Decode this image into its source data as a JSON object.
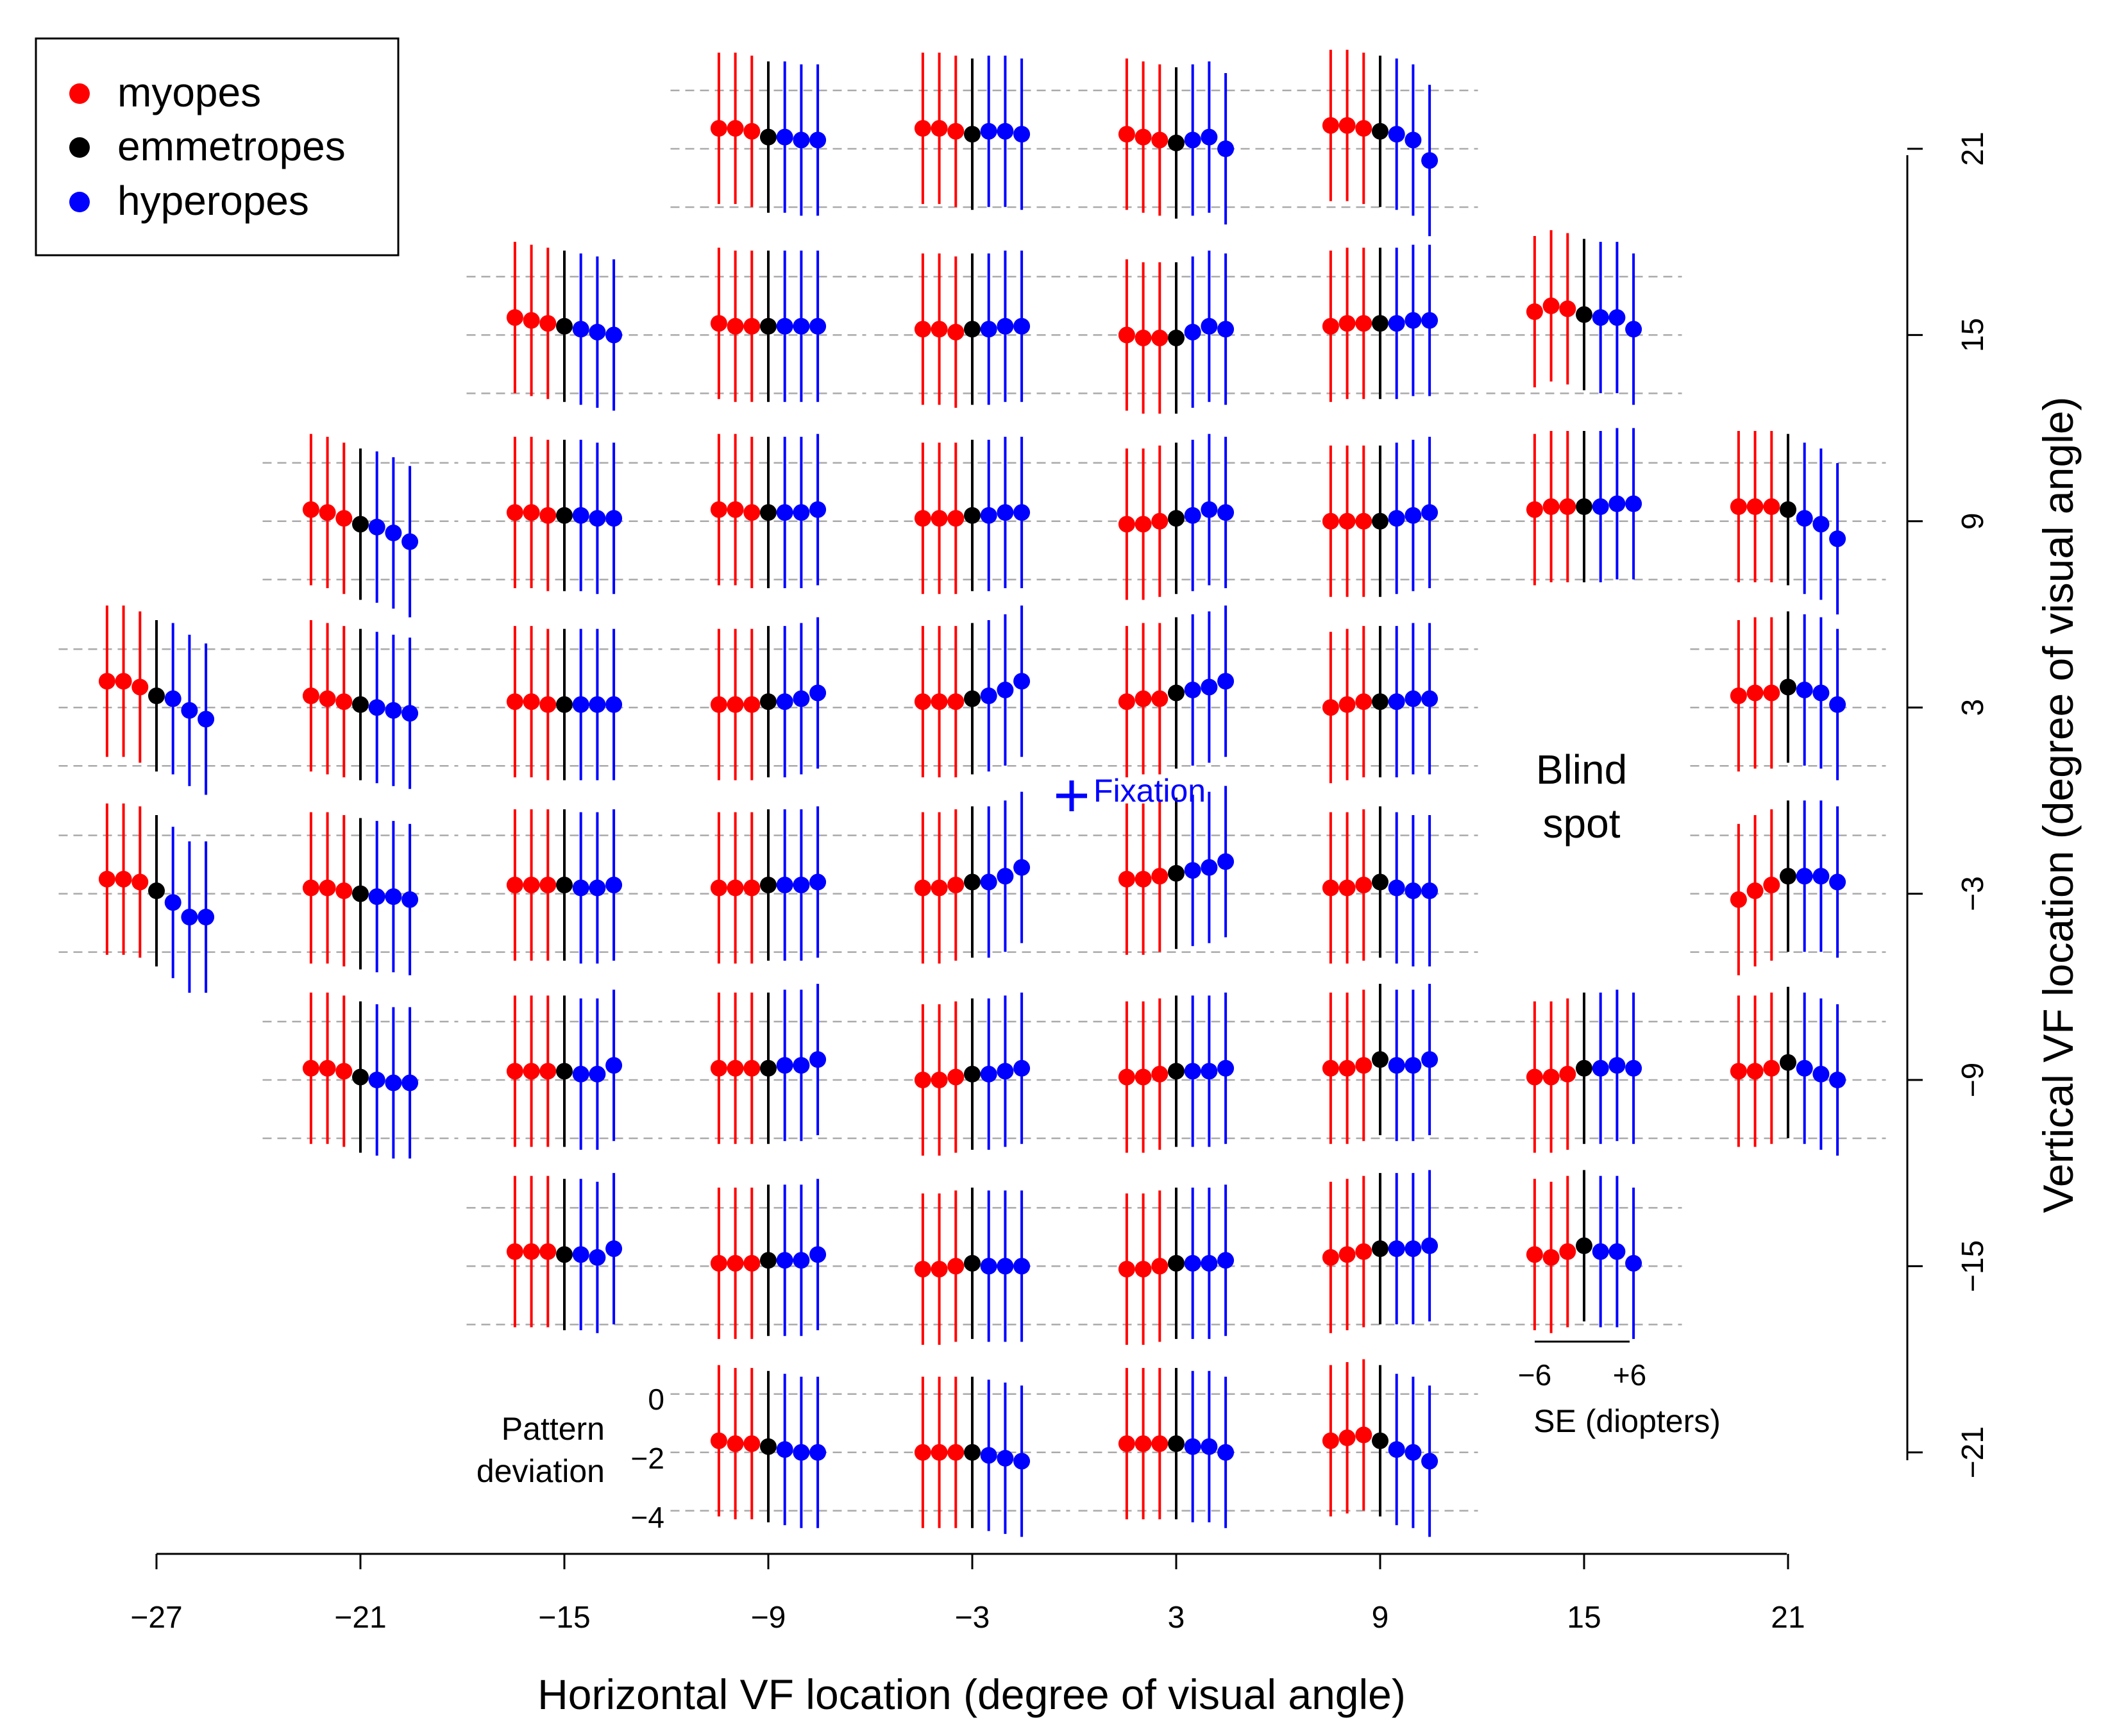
{
  "colors": {
    "myopes": "#ff0000",
    "emmetropes": "#000000",
    "hyperopes": "#0000ff",
    "reference": "#aaaaaa"
  },
  "legend": [
    {
      "label": "myopes",
      "color": "#ff0000"
    },
    {
      "label": "emmetropes",
      "color": "#000000"
    },
    {
      "label": "hyperopes",
      "color": "#0000ff"
    }
  ],
  "annotations": {
    "fixation": "Fixation",
    "blind_spot_line1": "Blind",
    "blind_spot_line2": "spot",
    "pattern_label_line1": "Pattern",
    "pattern_label_line2": "deviation",
    "se_axis_label": "SE (diopters)",
    "se_min_tick": "−6",
    "se_max_tick": "+6"
  },
  "chart_data": {
    "type": "scatter",
    "title": "",
    "xlabel": "Horizontal VF location (degree of visual angle)",
    "ylabel": "Vertical VF location (degree of visual angle)",
    "x_ticks": [
      "−27",
      "−21",
      "−15",
      "−9",
      "−3",
      "3",
      "9",
      "15",
      "21"
    ],
    "y_ticks": [
      "21",
      "15",
      "9",
      "3",
      "−3",
      "−9",
      "−15",
      "−21"
    ],
    "xlim": [
      -27,
      21
    ],
    "ylim": [
      -21,
      21
    ],
    "inset_scale": {
      "pattern_deviation_ticks": [
        "0",
        "−2",
        "−4"
      ],
      "pattern_deviation_reference_lines": [
        0,
        -2,
        -4
      ],
      "se_range_diopters": [
        -6,
        6
      ]
    },
    "series_order": [
      "myopes",
      "myopes",
      "myopes",
      "emmetropes",
      "hyperopes",
      "hyperopes",
      "hyperopes"
    ],
    "locations": [
      {
        "x": -27,
        "y": 3,
        "values": [
          -1.1,
          -1.1,
          -1.3,
          -1.6,
          -1.7,
          -2.1,
          -2.4
        ]
      },
      {
        "x": -27,
        "y": -3,
        "values": [
          -1.5,
          -1.5,
          -1.6,
          -1.9,
          -2.3,
          -2.8,
          -2.8
        ]
      },
      {
        "x": -21,
        "y": 9,
        "values": [
          -1.6,
          -1.7,
          -1.9,
          -2.1,
          -2.2,
          -2.4,
          -2.7
        ]
      },
      {
        "x": -21,
        "y": 3,
        "values": [
          -1.6,
          -1.7,
          -1.8,
          -1.9,
          -2.0,
          -2.1,
          -2.2
        ]
      },
      {
        "x": -21,
        "y": -3,
        "values": [
          -1.8,
          -1.8,
          -1.9,
          -2.0,
          -2.1,
          -2.1,
          -2.2
        ]
      },
      {
        "x": -21,
        "y": -9,
        "values": [
          -1.6,
          -1.6,
          -1.7,
          -1.9,
          -2.0,
          -2.1,
          -2.1
        ]
      },
      {
        "x": -15,
        "y": 15,
        "values": [
          -1.4,
          -1.5,
          -1.6,
          -1.7,
          -1.8,
          -1.9,
          -2.0
        ]
      },
      {
        "x": -15,
        "y": 9,
        "values": [
          -1.7,
          -1.7,
          -1.8,
          -1.8,
          -1.8,
          -1.9,
          -1.9
        ]
      },
      {
        "x": -15,
        "y": 3,
        "values": [
          -1.8,
          -1.8,
          -1.9,
          -1.9,
          -1.9,
          -1.9,
          -1.9
        ]
      },
      {
        "x": -15,
        "y": -3,
        "values": [
          -1.7,
          -1.7,
          -1.7,
          -1.7,
          -1.8,
          -1.8,
          -1.7
        ]
      },
      {
        "x": -15,
        "y": -9,
        "values": [
          -1.7,
          -1.7,
          -1.7,
          -1.7,
          -1.8,
          -1.8,
          -1.5
        ]
      },
      {
        "x": -15,
        "y": -15,
        "values": [
          -1.5,
          -1.5,
          -1.5,
          -1.6,
          -1.6,
          -1.7,
          -1.4
        ]
      },
      {
        "x": -9,
        "y": 21,
        "values": [
          -1.3,
          -1.3,
          -1.4,
          -1.6,
          -1.6,
          -1.7,
          -1.7
        ]
      },
      {
        "x": -9,
        "y": 15,
        "values": [
          -1.6,
          -1.7,
          -1.7,
          -1.7,
          -1.7,
          -1.7,
          -1.7
        ]
      },
      {
        "x": -9,
        "y": 9,
        "values": [
          -1.6,
          -1.6,
          -1.7,
          -1.7,
          -1.7,
          -1.7,
          -1.6
        ]
      },
      {
        "x": -9,
        "y": 3,
        "values": [
          -1.9,
          -1.9,
          -1.9,
          -1.8,
          -1.8,
          -1.7,
          -1.5
        ]
      },
      {
        "x": -9,
        "y": -3,
        "values": [
          -1.8,
          -1.8,
          -1.8,
          -1.7,
          -1.7,
          -1.7,
          -1.6
        ]
      },
      {
        "x": -9,
        "y": -9,
        "values": [
          -1.6,
          -1.6,
          -1.6,
          -1.6,
          -1.5,
          -1.5,
          -1.3
        ]
      },
      {
        "x": -9,
        "y": -15,
        "values": [
          -1.9,
          -1.9,
          -1.9,
          -1.8,
          -1.8,
          -1.8,
          -1.6
        ]
      },
      {
        "x": -9,
        "y": -21,
        "values": [
          -1.6,
          -1.7,
          -1.7,
          -1.8,
          -1.9,
          -2.0,
          -2.0
        ]
      },
      {
        "x": -3,
        "y": 21,
        "values": [
          -1.3,
          -1.3,
          -1.4,
          -1.5,
          -1.4,
          -1.4,
          -1.5
        ]
      },
      {
        "x": -3,
        "y": 15,
        "values": [
          -1.8,
          -1.8,
          -1.9,
          -1.8,
          -1.8,
          -1.7,
          -1.7
        ]
      },
      {
        "x": -3,
        "y": 9,
        "values": [
          -1.9,
          -1.9,
          -1.9,
          -1.8,
          -1.8,
          -1.7,
          -1.7
        ]
      },
      {
        "x": -3,
        "y": 3,
        "values": [
          -1.8,
          -1.8,
          -1.8,
          -1.7,
          -1.6,
          -1.4,
          -1.1
        ]
      },
      {
        "x": -3,
        "y": -3,
        "values": [
          -1.8,
          -1.8,
          -1.7,
          -1.6,
          -1.6,
          -1.4,
          -1.1
        ]
      },
      {
        "x": -3,
        "y": -9,
        "values": [
          -2.0,
          -2.0,
          -1.9,
          -1.8,
          -1.8,
          -1.7,
          -1.6
        ]
      },
      {
        "x": -3,
        "y": -15,
        "values": [
          -2.1,
          -2.1,
          -2.0,
          -1.9,
          -2.0,
          -2.0,
          -2.0
        ]
      },
      {
        "x": -3,
        "y": -21,
        "values": [
          -2.0,
          -2.0,
          -2.0,
          -2.0,
          -2.1,
          -2.2,
          -2.3
        ]
      },
      {
        "x": 3,
        "y": 21,
        "values": [
          -1.5,
          -1.6,
          -1.7,
          -1.8,
          -1.7,
          -1.6,
          -2.0
        ]
      },
      {
        "x": 3,
        "y": 15,
        "values": [
          -2.0,
          -2.1,
          -2.1,
          -2.1,
          -1.9,
          -1.7,
          -1.8
        ]
      },
      {
        "x": 3,
        "y": 9,
        "values": [
          -2.1,
          -2.1,
          -2.0,
          -1.9,
          -1.8,
          -1.6,
          -1.7
        ]
      },
      {
        "x": 3,
        "y": 3,
        "values": [
          -1.8,
          -1.7,
          -1.7,
          -1.5,
          -1.4,
          -1.3,
          -1.1
        ]
      },
      {
        "x": 3,
        "y": -3,
        "values": [
          -1.5,
          -1.5,
          -1.4,
          -1.3,
          -1.2,
          -1.1,
          -0.9
        ]
      },
      {
        "x": 3,
        "y": -9,
        "values": [
          -1.9,
          -1.9,
          -1.8,
          -1.7,
          -1.7,
          -1.7,
          -1.6
        ]
      },
      {
        "x": 3,
        "y": -15,
        "values": [
          -2.1,
          -2.1,
          -2.0,
          -1.9,
          -1.9,
          -1.9,
          -1.8
        ]
      },
      {
        "x": 3,
        "y": -21,
        "values": [
          -1.7,
          -1.7,
          -1.7,
          -1.7,
          -1.8,
          -1.8,
          -2.0
        ]
      },
      {
        "x": 9,
        "y": 21,
        "values": [
          -1.2,
          -1.2,
          -1.3,
          -1.4,
          -1.5,
          -1.7,
          -2.4
        ]
      },
      {
        "x": 9,
        "y": 15,
        "values": [
          -1.7,
          -1.6,
          -1.6,
          -1.6,
          -1.6,
          -1.5,
          -1.5
        ]
      },
      {
        "x": 9,
        "y": 9,
        "values": [
          -2.0,
          -2.0,
          -2.0,
          -2.0,
          -1.9,
          -1.8,
          -1.7
        ]
      },
      {
        "x": 9,
        "y": 3,
        "values": [
          -2.0,
          -1.9,
          -1.8,
          -1.8,
          -1.8,
          -1.7,
          -1.7
        ]
      },
      {
        "x": 9,
        "y": -3,
        "values": [
          -1.8,
          -1.8,
          -1.7,
          -1.6,
          -1.8,
          -1.9,
          -1.9
        ]
      },
      {
        "x": 9,
        "y": -9,
        "values": [
          -1.6,
          -1.6,
          -1.5,
          -1.3,
          -1.5,
          -1.5,
          -1.3
        ]
      },
      {
        "x": 9,
        "y": -15,
        "values": [
          -1.7,
          -1.6,
          -1.5,
          -1.4,
          -1.4,
          -1.4,
          -1.3
        ]
      },
      {
        "x": 9,
        "y": -21,
        "values": [
          -1.6,
          -1.5,
          -1.4,
          -1.6,
          -1.9,
          -2.0,
          -2.3
        ]
      },
      {
        "x": 15,
        "y": 15,
        "values": [
          -1.2,
          -1.0,
          -1.1,
          -1.3,
          -1.4,
          -1.4,
          -1.8
        ]
      },
      {
        "x": 15,
        "y": 9,
        "values": [
          -1.6,
          -1.5,
          -1.5,
          -1.5,
          -1.5,
          -1.4,
          -1.4
        ]
      },
      {
        "x": 15,
        "y": -9,
        "values": [
          -1.9,
          -1.9,
          -1.8,
          -1.6,
          -1.6,
          -1.5,
          -1.6
        ]
      },
      {
        "x": 15,
        "y": -15,
        "values": [
          -1.6,
          -1.7,
          -1.5,
          -1.3,
          -1.5,
          -1.5,
          -1.9
        ]
      },
      {
        "x": 21,
        "y": 9,
        "values": [
          -1.5,
          -1.5,
          -1.5,
          -1.6,
          -1.9,
          -2.1,
          -2.6
        ]
      },
      {
        "x": 21,
        "y": 3,
        "values": [
          -1.6,
          -1.5,
          -1.5,
          -1.3,
          -1.4,
          -1.5,
          -1.9
        ]
      },
      {
        "x": 21,
        "y": -3,
        "values": [
          -2.2,
          -1.9,
          -1.7,
          -1.4,
          -1.4,
          -1.4,
          -1.6
        ]
      },
      {
        "x": 21,
        "y": -9,
        "values": [
          -1.7,
          -1.7,
          -1.6,
          -1.4,
          -1.6,
          -1.8,
          -2.0
        ]
      }
    ]
  }
}
